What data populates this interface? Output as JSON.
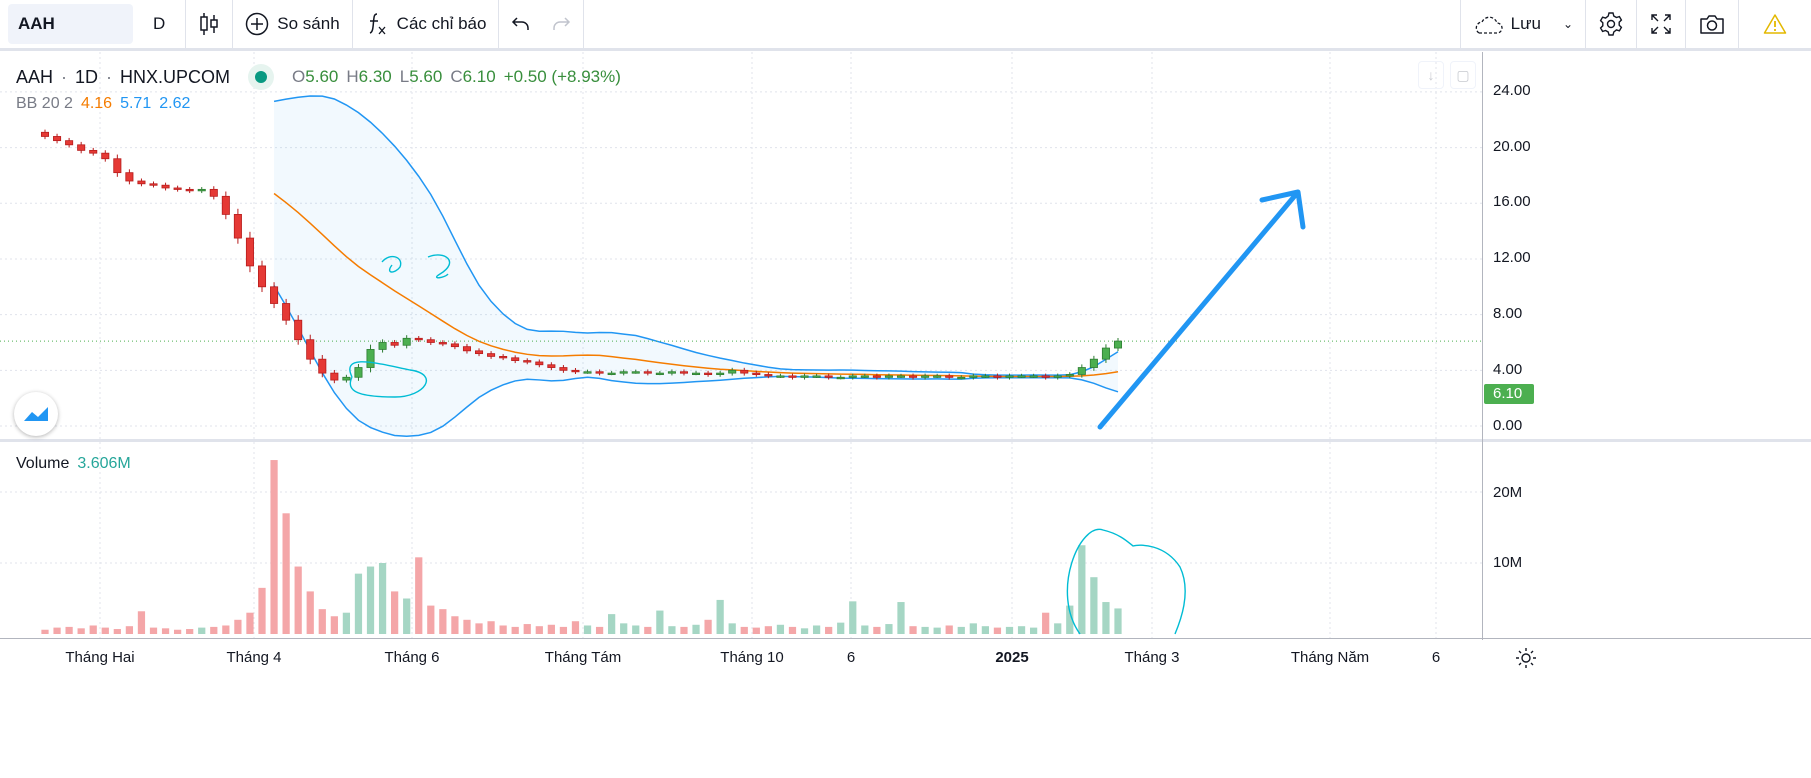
{
  "toolbar": {
    "symbol": "AAH",
    "interval": "D",
    "compare_label": "So sánh",
    "indicators_label": "Các chỉ báo",
    "save_label": "Lưu",
    "icons": [
      "candlestick-icon",
      "plus-circle-icon",
      "function-icon",
      "undo-icon",
      "redo-icon",
      "cloud-icon",
      "chevron-down-icon",
      "gear-icon",
      "fullscreen-icon",
      "camera-icon",
      "warning-icon"
    ]
  },
  "legend": {
    "symbol": "AAH",
    "interval": "1D",
    "exchange": "HNX.UPCOM",
    "o_label": "O",
    "o": "5.60",
    "h_label": "H",
    "h": "6.30",
    "l_label": "L",
    "l": "5.60",
    "c_label": "C",
    "c": "6.10",
    "change": "+0.50 (+8.93%)",
    "bb_name": "BB 20 2",
    "bb_basis": "4.16",
    "bb_upper": "5.71",
    "bb_lower": "2.62",
    "volume_name": "Volume",
    "volume_value": "3.606M"
  },
  "colors": {
    "up": "#4caf50",
    "down": "#e53935",
    "bb_basis": "#f57c00",
    "bb_band": "#2196f3",
    "last_price": "#4caf50",
    "annotation": "#2196f3",
    "annotation_circle": "#00bcd4"
  },
  "chart_data": {
    "type": "candlestick",
    "symbol": "AAH",
    "price_axis": {
      "ticks": [
        "24.00",
        "20.00",
        "16.00",
        "12.00",
        "8.00",
        "4.00",
        "0.00"
      ],
      "range": [
        0,
        24
      ]
    },
    "volume_axis": {
      "ticks": [
        "20M",
        "10M"
      ],
      "range": [
        0,
        25
      ]
    },
    "last_price": "6.10",
    "time_ticks": [
      "Tháng Hai",
      "Tháng 4",
      "Tháng 6",
      "Tháng Tám",
      "Tháng 10",
      "6",
      "2025",
      "Tháng 3",
      "Tháng Năm",
      "6"
    ],
    "close": [
      20.8,
      20.5,
      20.2,
      19.8,
      19.6,
      19.2,
      18.2,
      17.6,
      17.4,
      17.3,
      17.1,
      17.0,
      16.9,
      17.0,
      16.5,
      15.2,
      13.5,
      11.5,
      10.0,
      8.8,
      7.6,
      6.2,
      4.8,
      3.8,
      3.3,
      3.5,
      4.2,
      5.5,
      6.0,
      5.8,
      6.3,
      6.2,
      6.0,
      5.9,
      5.7,
      5.4,
      5.2,
      5.0,
      4.9,
      4.7,
      4.6,
      4.4,
      4.2,
      4.0,
      3.9,
      3.9,
      3.8,
      3.8,
      3.9,
      3.9,
      3.8,
      3.8,
      3.9,
      3.8,
      3.8,
      3.7,
      3.8,
      4.0,
      3.8,
      3.7,
      3.6,
      3.6,
      3.5,
      3.6,
      3.6,
      3.5,
      3.5,
      3.6,
      3.6,
      3.5,
      3.6,
      3.6,
      3.5,
      3.6,
      3.6,
      3.5,
      3.5,
      3.6,
      3.6,
      3.5,
      3.6,
      3.6,
      3.6,
      3.5,
      3.6,
      3.7,
      4.2,
      4.8,
      5.6,
      6.1
    ],
    "volume_millions": [
      0.6,
      0.9,
      1.0,
      0.8,
      1.2,
      0.9,
      0.7,
      1.1,
      3.2,
      0.9,
      0.8,
      0.6,
      0.7,
      0.9,
      1.0,
      1.2,
      2.0,
      3.0,
      6.5,
      24.5,
      17.0,
      9.5,
      6.0,
      3.5,
      2.5,
      3.0,
      8.5,
      9.5,
      10.0,
      6.0,
      5.0,
      10.8,
      4.0,
      3.5,
      2.5,
      2.0,
      1.5,
      1.8,
      1.2,
      1.0,
      1.4,
      1.1,
      1.3,
      1.0,
      1.8,
      1.2,
      1.0,
      2.8,
      1.5,
      1.2,
      1.0,
      3.3,
      1.1,
      1.0,
      1.3,
      2.0,
      4.8,
      1.5,
      1.0,
      0.9,
      1.1,
      1.3,
      1.0,
      0.8,
      1.2,
      1.0,
      1.6,
      4.6,
      1.2,
      1.0,
      1.4,
      4.5,
      1.1,
      1.0,
      0.9,
      1.2,
      1.0,
      1.5,
      1.1,
      0.9,
      1.0,
      1.1,
      0.9,
      3.0,
      1.5,
      4.0,
      12.5,
      8.0,
      4.5,
      3.6
    ],
    "indicators": [
      {
        "name": "Bollinger Bands",
        "length": 20,
        "mult": 2
      }
    ]
  }
}
